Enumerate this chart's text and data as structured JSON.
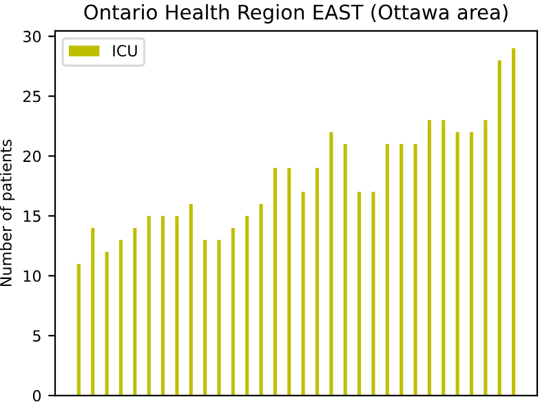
{
  "chart_data": {
    "type": "bar",
    "title": "Ontario Health Region EAST (Ottawa area)",
    "ylabel": "Number of patients",
    "categories": [
      null,
      null,
      null,
      null,
      null,
      null,
      null,
      null,
      null,
      null,
      null,
      null,
      null,
      null,
      null,
      null,
      null,
      null,
      null,
      null,
      null,
      null,
      null,
      null,
      null,
      null,
      null,
      null,
      null,
      null,
      null,
      null
    ],
    "series": [
      {
        "name": "ICU",
        "color": "#bfbf00",
        "values": [
          11,
          14,
          12,
          13,
          14,
          15,
          15,
          15,
          16,
          13,
          13,
          14,
          15,
          16,
          19,
          19,
          17,
          19,
          22,
          21,
          17,
          17,
          21,
          21,
          21,
          23,
          23,
          22,
          22,
          23,
          28,
          29
        ]
      }
    ],
    "ylim": [
      0,
      30.45
    ],
    "yticks": [
      0,
      5,
      10,
      15,
      20,
      25,
      30
    ],
    "grid": false,
    "legend": "top left",
    "tick_labels": "y"
  }
}
